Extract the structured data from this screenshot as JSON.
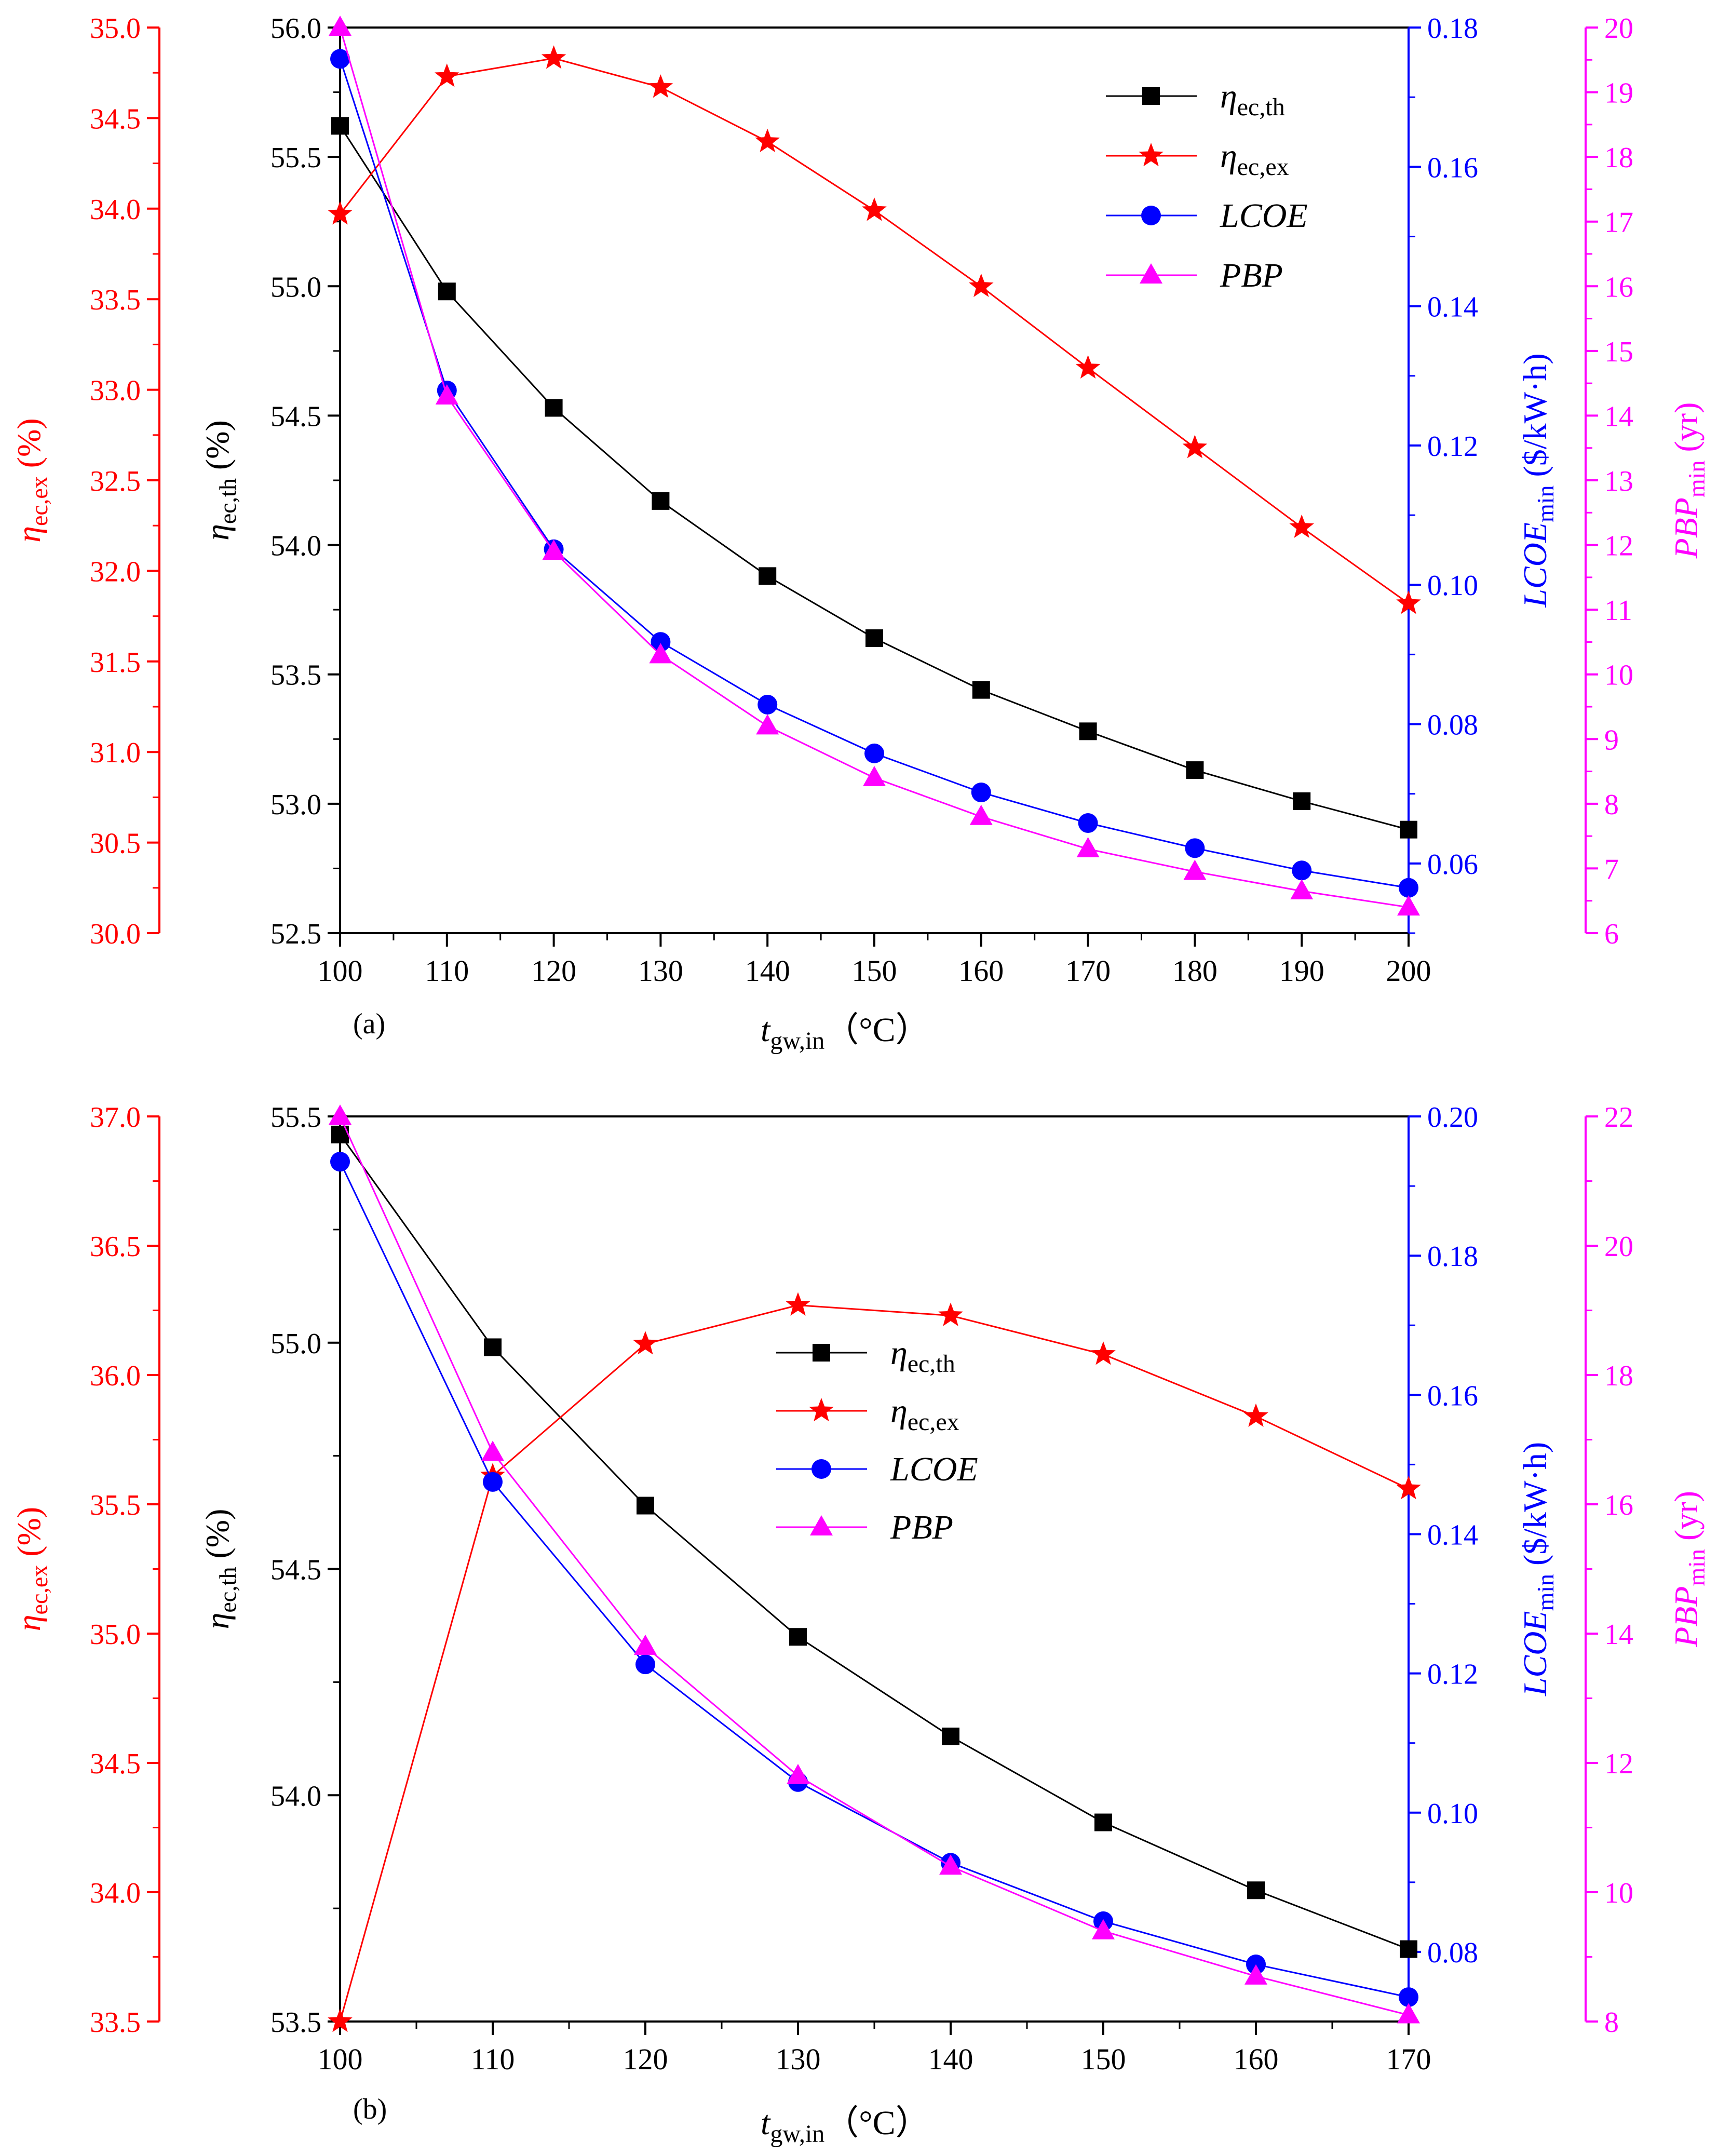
{
  "chart_data": [
    {
      "id": "a",
      "type": "line",
      "panel_label": "(a)",
      "x": [
        100,
        110,
        120,
        130,
        140,
        150,
        160,
        170,
        180,
        190,
        200
      ],
      "xlim": [
        100,
        200
      ],
      "xticks": [
        "100",
        "110",
        "120",
        "130",
        "140",
        "150",
        "160",
        "170",
        "180",
        "190",
        "200"
      ],
      "xlabel": {
        "main": "t",
        "sub": "gw,in",
        "unit": "（°C）"
      },
      "axes": {
        "th": {
          "lim": [
            52.5,
            56.0
          ],
          "ticks": [
            "52.5",
            "53.0",
            "53.5",
            "54.0",
            "54.5",
            "55.0",
            "55.5",
            "56.0"
          ],
          "color": "#000000",
          "label": {
            "main": "η",
            "sub": "ec,th",
            "unit": " (%)"
          }
        },
        "ex": {
          "lim": [
            30.0,
            35.0
          ],
          "ticks": [
            "30.0",
            "30.5",
            "31.0",
            "31.5",
            "32.0",
            "32.5",
            "33.0",
            "33.5",
            "34.0",
            "34.5",
            "35.0"
          ],
          "color": "#ff0000",
          "label": {
            "main": "η",
            "sub": "ec,ex",
            "unit": " (%)"
          }
        },
        "lcoe": {
          "lim": [
            0.05,
            0.18
          ],
          "ticks": [
            "0.06",
            "0.08",
            "0.10",
            "0.12",
            "0.14",
            "0.16",
            "0.18"
          ],
          "tick_values": [
            0.06,
            0.08,
            0.1,
            0.12,
            0.14,
            0.16,
            0.18
          ],
          "color": "#0000ff",
          "label": {
            "main": "LCOE",
            "sub": "min",
            "unit": " ($/kW·h)"
          }
        },
        "pbp": {
          "lim": [
            6,
            20
          ],
          "ticks": [
            "6",
            "7",
            "8",
            "9",
            "10",
            "11",
            "12",
            "13",
            "14",
            "15",
            "16",
            "17",
            "18",
            "19",
            "20"
          ],
          "color": "#ff00ff",
          "label": {
            "main": "PBP",
            "sub": "min",
            "unit": " (yr)"
          }
        }
      },
      "series": [
        {
          "name": "η",
          "name_sub": "ec,th",
          "axis": "th",
          "marker": "square",
          "color": "#000000",
          "values": [
            55.62,
            54.98,
            54.53,
            54.17,
            53.88,
            53.64,
            53.44,
            53.28,
            53.13,
            53.01,
            52.9
          ]
        },
        {
          "name": "η",
          "name_sub": "ec,ex",
          "axis": "ex",
          "marker": "star",
          "color": "#ff0000",
          "values": [
            33.97,
            34.73,
            34.83,
            34.67,
            34.37,
            33.99,
            33.57,
            33.12,
            32.68,
            32.24,
            31.82
          ]
        },
        {
          "name": "LCOE",
          "name_sub": "",
          "axis": "lcoe",
          "marker": "circle",
          "color": "#0000ff",
          "values": [
            0.1755,
            0.1279,
            0.1051,
            0.0918,
            0.0828,
            0.0758,
            0.0702,
            0.0658,
            0.0622,
            0.059,
            0.0565
          ]
        },
        {
          "name": "PBP",
          "name_sub": "",
          "axis": "pbp",
          "marker": "triangle",
          "color": "#ff00ff",
          "values": [
            20.0,
            14.3,
            11.9,
            10.3,
            9.2,
            8.4,
            7.8,
            7.3,
            6.95,
            6.65,
            6.4
          ]
        }
      ]
    },
    {
      "id": "b",
      "type": "line",
      "panel_label": "(b)",
      "x": [
        100,
        110,
        120,
        130,
        140,
        150,
        160,
        170
      ],
      "xlim": [
        100,
        170
      ],
      "xticks": [
        "100",
        "110",
        "120",
        "130",
        "140",
        "150",
        "160",
        "170"
      ],
      "xlabel": {
        "main": "t",
        "sub": "gw,in",
        "unit": "（°C）"
      },
      "axes": {
        "th": {
          "lim": [
            53.5,
            55.5
          ],
          "ticks": [
            "53.5",
            "54.0",
            "54.5",
            "55.0",
            "55.5"
          ],
          "color": "#000000",
          "label": {
            "main": "η",
            "sub": "ec,th",
            "unit": " (%)"
          }
        },
        "ex": {
          "lim": [
            33.5,
            37.0
          ],
          "ticks": [
            "33.5",
            "34.0",
            "34.5",
            "35.0",
            "35.5",
            "36.0",
            "36.5",
            "37.0"
          ],
          "color": "#ff0000",
          "label": {
            "main": "η",
            "sub": "ec,ex",
            "unit": " (%)"
          }
        },
        "lcoe": {
          "lim": [
            0.07,
            0.2
          ],
          "ticks": [
            "0.08",
            "0.10",
            "0.12",
            "0.14",
            "0.16",
            "0.18",
            "0.20"
          ],
          "tick_values": [
            0.08,
            0.1,
            0.12,
            0.14,
            0.16,
            0.18,
            0.2
          ],
          "color": "#0000ff",
          "label": {
            "main": "LCOE",
            "sub": "min",
            "unit": " ($/kW·h)"
          }
        },
        "pbp": {
          "lim": [
            8,
            22
          ],
          "ticks": [
            "8",
            "10",
            "12",
            "14",
            "16",
            "18",
            "20",
            "22"
          ],
          "color": "#ff00ff",
          "label": {
            "main": "PBP",
            "sub": "min",
            "unit": " (yr)"
          }
        }
      },
      "series": [
        {
          "name": "η",
          "name_sub": "ec,th",
          "axis": "th",
          "marker": "square",
          "color": "#000000",
          "values": [
            55.46,
            54.99,
            54.64,
            54.35,
            54.13,
            53.94,
            53.79,
            53.66
          ]
        },
        {
          "name": "η",
          "name_sub": "ec,ex",
          "axis": "ex",
          "marker": "star",
          "color": "#ff0000",
          "values": [
            33.5,
            35.61,
            36.12,
            36.27,
            36.23,
            36.08,
            35.84,
            35.56
          ]
        },
        {
          "name": "LCOE",
          "name_sub": "",
          "axis": "lcoe",
          "marker": "circle",
          "color": "#0000ff",
          "values": [
            0.1935,
            0.1475,
            0.1213,
            0.1044,
            0.0928,
            0.0844,
            0.0782,
            0.0735
          ]
        },
        {
          "name": "PBP",
          "name_sub": "",
          "axis": "pbp",
          "marker": "triangle",
          "color": "#ff00ff",
          "values": [
            22.0,
            16.8,
            13.8,
            11.8,
            10.4,
            9.4,
            8.7,
            8.1
          ]
        }
      ]
    }
  ]
}
